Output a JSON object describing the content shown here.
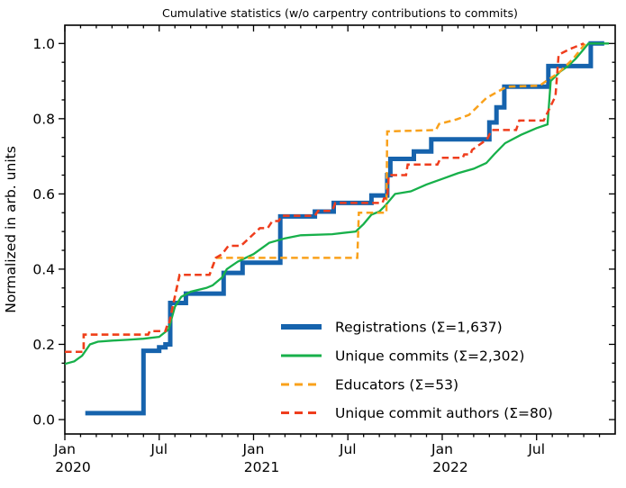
{
  "figure": {
    "title": "Cumulative statistics (w/o carpentry contributions to commits)"
  },
  "chart_data": {
    "type": "line",
    "title": "Cumulative statistics (w/o carpentry contributions to commits)",
    "xlabel": "",
    "ylabel": "Normalized in arb. units",
    "x_unit": "months since 2020-01",
    "xlim": [
      0,
      35
    ],
    "ylim": [
      -0.04,
      1.05
    ],
    "grid": false,
    "legend_position": "inside lower right",
    "y_major_ticks": [
      0.0,
      0.2,
      0.4,
      0.6,
      0.8,
      1.0
    ],
    "y_minor_step": 0.05,
    "x_major_ticks": [
      {
        "month": 0,
        "label": "Jan",
        "year": "2020"
      },
      {
        "month": 6,
        "label": "Jul",
        "year": ""
      },
      {
        "month": 12,
        "label": "Jan",
        "year": "2021"
      },
      {
        "month": 18,
        "label": "Jul",
        "year": ""
      },
      {
        "month": 24,
        "label": "Jan",
        "year": "2022"
      },
      {
        "month": 30,
        "label": "Jul",
        "year": ""
      }
    ],
    "x_minor_step_months": 1,
    "series": [
      {
        "name": "Registrations  (Σ=1,637)",
        "key": "registrations",
        "total": 1637,
        "color": "#1663ad",
        "style": "solid",
        "width": 5,
        "mode": "step",
        "points": [
          [
            1.3,
            0.017
          ],
          [
            5.0,
            0.183
          ],
          [
            6.0,
            0.192
          ],
          [
            6.4,
            0.2
          ],
          [
            6.7,
            0.31
          ],
          [
            7.7,
            0.335
          ],
          [
            10.1,
            0.39
          ],
          [
            11.3,
            0.417
          ],
          [
            13.7,
            0.54
          ],
          [
            15.9,
            0.553
          ],
          [
            17.1,
            0.576
          ],
          [
            19.5,
            0.596
          ],
          [
            20.5,
            0.65
          ],
          [
            20.7,
            0.693
          ],
          [
            22.2,
            0.713
          ],
          [
            23.3,
            0.745
          ],
          [
            27.0,
            0.79
          ],
          [
            27.45,
            0.83
          ],
          [
            27.95,
            0.885
          ],
          [
            30.75,
            0.94
          ],
          [
            33.45,
            1.0
          ],
          [
            34.3,
            1.0
          ]
        ]
      },
      {
        "name": "Unique commits (Σ=2,302)",
        "key": "unique-commits",
        "total": 2302,
        "color": "#17b04a",
        "style": "solid",
        "width": 2.3,
        "mode": "line",
        "points": [
          [
            0,
            0.148
          ],
          [
            0.6,
            0.155
          ],
          [
            1.1,
            0.17
          ],
          [
            1.6,
            0.2
          ],
          [
            2.1,
            0.207
          ],
          [
            3,
            0.21
          ],
          [
            4,
            0.212
          ],
          [
            5,
            0.215
          ],
          [
            6,
            0.22
          ],
          [
            6.6,
            0.24
          ],
          [
            7.0,
            0.3
          ],
          [
            7.4,
            0.326
          ],
          [
            8,
            0.34
          ],
          [
            9,
            0.35
          ],
          [
            9.4,
            0.357
          ],
          [
            10,
            0.378
          ],
          [
            10.3,
            0.4
          ],
          [
            11,
            0.42
          ],
          [
            12,
            0.44
          ],
          [
            13,
            0.47
          ],
          [
            14,
            0.482
          ],
          [
            15,
            0.49
          ],
          [
            17,
            0.493
          ],
          [
            18.5,
            0.5
          ],
          [
            19,
            0.52
          ],
          [
            19.5,
            0.545
          ],
          [
            20,
            0.553
          ],
          [
            20.4,
            0.57
          ],
          [
            21,
            0.6
          ],
          [
            22,
            0.607
          ],
          [
            23,
            0.625
          ],
          [
            24,
            0.64
          ],
          [
            25,
            0.655
          ],
          [
            26,
            0.667
          ],
          [
            26.8,
            0.682
          ],
          [
            27.3,
            0.705
          ],
          [
            28,
            0.735
          ],
          [
            29,
            0.757
          ],
          [
            30,
            0.775
          ],
          [
            30.7,
            0.785
          ],
          [
            30.9,
            0.9
          ],
          [
            31.5,
            0.925
          ],
          [
            32,
            0.94
          ],
          [
            32.5,
            0.96
          ],
          [
            33,
            0.985
          ],
          [
            33.3,
            1.0
          ],
          [
            34.6,
            1.0
          ]
        ]
      },
      {
        "name": "Educators (Σ=53)",
        "key": "educators",
        "total": 53,
        "color": "#f9a11b",
        "style": "dashed",
        "width": 2.5,
        "mode": "line",
        "points": [
          [
            0,
            0.18
          ],
          [
            1.2,
            0.18
          ],
          [
            1.2,
            0.226
          ],
          [
            5.3,
            0.226
          ],
          [
            5.4,
            0.235
          ],
          [
            6.4,
            0.235
          ],
          [
            6.5,
            0.25
          ],
          [
            6.6,
            0.25
          ],
          [
            7.3,
            0.385
          ],
          [
            9.2,
            0.385
          ],
          [
            9.6,
            0.43
          ],
          [
            10.3,
            0.43
          ],
          [
            18.6,
            0.43
          ],
          [
            18.7,
            0.55
          ],
          [
            20.45,
            0.55
          ],
          [
            20.5,
            0.766
          ],
          [
            23.6,
            0.77
          ],
          [
            23.8,
            0.786
          ],
          [
            24.9,
            0.798
          ],
          [
            25.7,
            0.81
          ],
          [
            26.8,
            0.855
          ],
          [
            28.1,
            0.885
          ],
          [
            30.2,
            0.888
          ],
          [
            30.6,
            0.9
          ],
          [
            31.4,
            0.922
          ],
          [
            32.3,
            0.958
          ],
          [
            33.1,
            1.0
          ]
        ]
      },
      {
        "name": "Unique commit authors (Σ=80)",
        "key": "unique-commit-authors",
        "total": 80,
        "color": "#ef3d1d",
        "style": "dashed",
        "width": 2.5,
        "mode": "line",
        "points": [
          [
            0,
            0.18
          ],
          [
            1.2,
            0.18
          ],
          [
            1.2,
            0.226
          ],
          [
            5.3,
            0.226
          ],
          [
            5.4,
            0.235
          ],
          [
            6.4,
            0.235
          ],
          [
            6.5,
            0.25
          ],
          [
            6.6,
            0.25
          ],
          [
            7.3,
            0.385
          ],
          [
            9.2,
            0.385
          ],
          [
            9.6,
            0.43
          ],
          [
            10.0,
            0.44
          ],
          [
            10.4,
            0.462
          ],
          [
            11.2,
            0.462
          ],
          [
            12.4,
            0.509
          ],
          [
            12.9,
            0.509
          ],
          [
            13.2,
            0.528
          ],
          [
            13.6,
            0.528
          ],
          [
            13.8,
            0.542
          ],
          [
            15.9,
            0.542
          ],
          [
            16.1,
            0.555
          ],
          [
            17.0,
            0.555
          ],
          [
            17.2,
            0.576
          ],
          [
            20.2,
            0.576
          ],
          [
            20.3,
            0.588
          ],
          [
            20.5,
            0.588
          ],
          [
            20.6,
            0.65
          ],
          [
            21.7,
            0.65
          ],
          [
            21.8,
            0.678
          ],
          [
            23.7,
            0.678
          ],
          [
            23.9,
            0.696
          ],
          [
            25.3,
            0.696
          ],
          [
            25.4,
            0.705
          ],
          [
            25.8,
            0.705
          ],
          [
            25.9,
            0.717
          ],
          [
            26.85,
            0.745
          ],
          [
            27.15,
            0.77
          ],
          [
            28.7,
            0.77
          ],
          [
            28.9,
            0.795
          ],
          [
            30.45,
            0.795
          ],
          [
            31.2,
            0.86
          ],
          [
            31.4,
            0.97
          ],
          [
            32.1,
            0.985
          ],
          [
            32.7,
            0.995
          ],
          [
            33.0,
            1.0
          ]
        ]
      }
    ],
    "legend": {
      "items": [
        "Registrations  (Σ=1,637)",
        "Unique commits (Σ=2,302)",
        "Educators (Σ=53)",
        "Unique commit authors (Σ=80)"
      ]
    }
  }
}
